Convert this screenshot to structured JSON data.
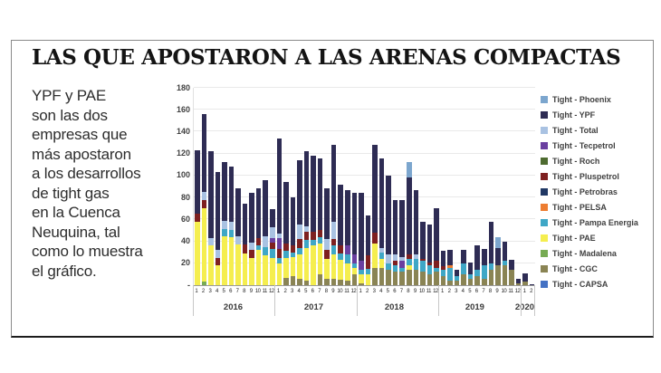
{
  "card": {
    "title": "LAS QUE APOSTARON A LAS ARENAS COMPACTAS",
    "paragraph": "YPF y PAE\nson las dos\nempresas que\nmás apostaron\na los desarrollos\nde tight gas\nen la Cuenca\nNeuquina, tal\ncomo lo muestra\nel gráfico."
  },
  "chart_data": {
    "type": "bar",
    "stacked": true,
    "title": "",
    "xlabel": "",
    "ylabel": "",
    "ylim": [
      0,
      180
    ],
    "grid": true,
    "legend_position": "right",
    "y_ticks": [
      "180",
      "160",
      "140",
      "120",
      "100",
      "80",
      "60",
      "40",
      "20",
      "-"
    ],
    "categories": [
      "1",
      "2",
      "3",
      "4",
      "5",
      "6",
      "7",
      "8",
      "9",
      "10",
      "11",
      "12",
      "1",
      "2",
      "3",
      "4",
      "5",
      "6",
      "7",
      "8",
      "9",
      "10",
      "11",
      "12",
      "1",
      "2",
      "3",
      "4",
      "5",
      "6",
      "7",
      "8",
      "9",
      "10",
      "11",
      "12",
      "1",
      "2",
      "3",
      "4",
      "5",
      "6",
      "7",
      "8",
      "9",
      "10",
      "11",
      "12",
      "1",
      "2"
    ],
    "year_groups": [
      {
        "label": "2016",
        "count": 12
      },
      {
        "label": "2017",
        "count": 12
      },
      {
        "label": "2018",
        "count": 12
      },
      {
        "label": "2019",
        "count": 12
      },
      {
        "label": "2020",
        "count": 2
      }
    ],
    "series": [
      {
        "name": "Tight - Phoenix",
        "color": "#7CA6CE",
        "values": [
          0,
          0,
          0,
          0,
          0,
          0,
          0,
          0,
          0,
          0,
          0,
          0,
          0,
          0,
          0,
          0,
          0,
          0,
          0,
          0,
          0,
          0,
          0,
          0,
          0,
          0,
          0,
          0,
          0,
          0,
          0,
          14,
          0,
          0,
          0,
          0,
          0,
          0,
          0,
          0,
          0,
          0,
          0,
          0,
          10,
          0,
          0,
          0,
          0,
          0
        ]
      },
      {
        "name": "Tight - YPF",
        "color": "#2E2C54",
        "values": [
          58,
          71,
          79,
          71,
          53,
          50,
          43,
          37,
          45,
          45,
          51,
          16,
          87,
          56,
          44,
          59,
          68,
          69,
          66,
          46,
          70,
          56,
          51,
          56,
          62,
          37,
          80,
          82,
          72,
          50,
          52,
          70,
          59,
          34,
          34,
          48,
          14,
          14,
          6,
          12,
          11,
          22,
          15,
          38,
          16,
          18,
          9,
          4,
          8,
          1
        ]
      },
      {
        "name": "Tight - Total",
        "color": "#A9C2E2",
        "values": [
          0,
          7,
          7,
          7,
          8,
          8,
          8,
          0,
          7,
          0,
          10,
          10,
          4,
          0,
          0,
          13,
          5,
          0,
          0,
          10,
          16,
          0,
          0,
          0,
          0,
          0,
          0,
          4,
          8,
          6,
          4,
          0,
          4,
          0,
          0,
          0,
          0,
          0,
          0,
          0,
          0,
          0,
          0,
          0,
          0,
          0,
          0,
          0,
          0,
          0
        ]
      },
      {
        "name": "Tight - Tecpetrol",
        "color": "#6A3FA0",
        "values": [
          0,
          0,
          0,
          0,
          0,
          0,
          0,
          0,
          0,
          0,
          0,
          4,
          10,
          0,
          0,
          0,
          0,
          0,
          0,
          0,
          0,
          0,
          8,
          8,
          8,
          0,
          0,
          0,
          0,
          0,
          6,
          0,
          0,
          0,
          0,
          0,
          0,
          0,
          0,
          0,
          0,
          0,
          0,
          0,
          0,
          0,
          0,
          0,
          0,
          0
        ]
      },
      {
        "name": "Tight - Roch",
        "color": "#4E6B30",
        "values": [
          0,
          0,
          0,
          0,
          0,
          0,
          0,
          0,
          0,
          0,
          0,
          0,
          0,
          0,
          0,
          0,
          0,
          0,
          0,
          0,
          0,
          0,
          0,
          0,
          0,
          0,
          0,
          0,
          0,
          0,
          0,
          0,
          0,
          0,
          0,
          0,
          0,
          0,
          0,
          0,
          0,
          0,
          0,
          0,
          0,
          0,
          0,
          0,
          0,
          0
        ]
      },
      {
        "name": "Tight - Pluspetrol",
        "color": "#7E2020",
        "values": [
          7,
          8,
          0,
          7,
          0,
          0,
          0,
          8,
          7,
          7,
          0,
          6,
          8,
          7,
          6,
          8,
          8,
          8,
          6,
          8,
          6,
          7,
          0,
          0,
          0,
          12,
          10,
          0,
          0,
          4,
          0,
          4,
          0,
          2,
          3,
          6,
          3,
          0,
          0,
          0,
          0,
          0,
          0,
          0,
          0,
          0,
          0,
          0,
          0,
          0
        ]
      },
      {
        "name": "Tight - Petrobras",
        "color": "#203864",
        "values": [
          0,
          0,
          0,
          0,
          0,
          0,
          0,
          0,
          0,
          0,
          0,
          0,
          0,
          0,
          0,
          0,
          0,
          0,
          0,
          0,
          0,
          0,
          0,
          0,
          0,
          0,
          0,
          0,
          0,
          0,
          0,
          0,
          0,
          0,
          0,
          0,
          0,
          0,
          0,
          0,
          0,
          0,
          0,
          0,
          0,
          0,
          0,
          0,
          0,
          0
        ]
      },
      {
        "name": "Tight - PELSA",
        "color": "#ED7D31",
        "values": [
          0,
          0,
          0,
          0,
          0,
          0,
          0,
          0,
          0,
          0,
          0,
          0,
          0,
          0,
          0,
          0,
          0,
          0,
          0,
          0,
          0,
          0,
          0,
          0,
          0,
          0,
          0,
          0,
          0,
          0,
          0,
          0,
          0,
          0,
          0,
          0,
          0,
          2,
          0,
          0,
          0,
          0,
          0,
          0,
          0,
          0,
          0,
          0,
          0,
          0
        ]
      },
      {
        "name": "Tight - Pampa Energia",
        "color": "#3FA7C6",
        "values": [
          0,
          0,
          0,
          0,
          6,
          6,
          0,
          0,
          0,
          4,
          8,
          8,
          5,
          6,
          4,
          6,
          7,
          5,
          6,
          0,
          8,
          6,
          8,
          4,
          4,
          5,
          0,
          6,
          6,
          6,
          4,
          6,
          10,
          10,
          8,
          4,
          6,
          12,
          4,
          10,
          4,
          6,
          12,
          6,
          0,
          4,
          0,
          0,
          0,
          0
        ]
      },
      {
        "name": "Tight - PAE",
        "color": "#F5EE4F",
        "values": [
          58,
          67,
          36,
          18,
          45,
          44,
          37,
          29,
          25,
          32,
          27,
          25,
          20,
          18,
          18,
          22,
          30,
          36,
          28,
          18,
          22,
          18,
          16,
          6,
          8,
          10,
          22,
          8,
          0,
          0,
          0,
          4,
          0,
          0,
          0,
          0,
          0,
          0,
          0,
          0,
          0,
          0,
          0,
          0,
          0,
          0,
          0,
          0,
          0,
          0
        ]
      },
      {
        "name": "Tight - Madalena",
        "color": "#77AB53",
        "values": [
          0,
          3,
          0,
          0,
          0,
          0,
          0,
          0,
          0,
          0,
          0,
          0,
          0,
          0,
          0,
          0,
          0,
          0,
          0,
          0,
          0,
          0,
          0,
          0,
          0,
          0,
          0,
          0,
          0,
          0,
          0,
          0,
          0,
          0,
          0,
          0,
          0,
          0,
          0,
          0,
          0,
          0,
          0,
          0,
          0,
          0,
          0,
          0,
          0,
          0
        ]
      },
      {
        "name": "Tight - CGC",
        "color": "#8A8454",
        "values": [
          0,
          0,
          0,
          0,
          0,
          0,
          0,
          0,
          0,
          0,
          0,
          0,
          0,
          7,
          8,
          6,
          4,
          0,
          10,
          6,
          6,
          5,
          4,
          10,
          2,
          0,
          16,
          16,
          14,
          12,
          12,
          14,
          14,
          12,
          10,
          12,
          8,
          4,
          4,
          10,
          6,
          8,
          6,
          14,
          18,
          18,
          14,
          2,
          3,
          0
        ]
      },
      {
        "name": "Tight - CAPSA",
        "color": "#4472C4",
        "values": [
          0,
          0,
          0,
          0,
          0,
          0,
          0,
          0,
          0,
          0,
          0,
          0,
          0,
          0,
          0,
          0,
          0,
          0,
          0,
          0,
          0,
          0,
          0,
          0,
          0,
          0,
          0,
          0,
          0,
          0,
          0,
          0,
          0,
          0,
          0,
          0,
          0,
          0,
          0,
          0,
          0,
          0,
          0,
          0,
          0,
          0,
          0,
          0,
          0,
          0
        ]
      }
    ]
  }
}
